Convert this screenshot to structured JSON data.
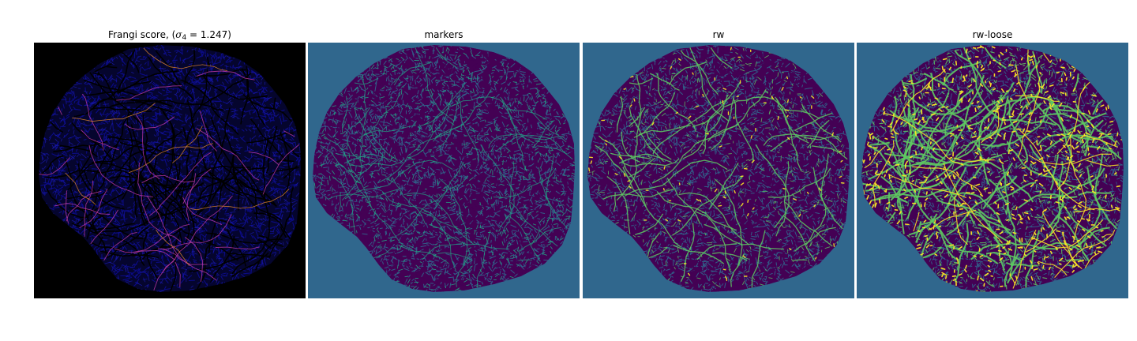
{
  "panels": [
    {
      "id": "frangi",
      "title_prefix": "Frangi score, (",
      "sigma_symbol": "σ",
      "sigma_sub": "4",
      "title_suffix": " = 1.247)",
      "colors": {
        "background": "#000000",
        "tissue": "#0c0c8a",
        "vessel": "#c23aa6",
        "hot": "#f2902a"
      }
    },
    {
      "id": "markers",
      "title": "markers",
      "colors": {
        "background": "#30678d",
        "tissue": "#440154",
        "mid": "#30678d",
        "marker": "#22a784"
      }
    },
    {
      "id": "rw",
      "title": "rw",
      "colors": {
        "background": "#30678d",
        "tissue": "#440154",
        "mid": "#30678d",
        "vessel": "#5ec962",
        "hot": "#fde725"
      }
    },
    {
      "id": "rw-loose",
      "title": "rw-loose",
      "colors": {
        "background": "#30678d",
        "tissue": "#440154",
        "mid": "#30678d",
        "vessel": "#5ec962",
        "hot": "#fde725"
      }
    }
  ]
}
